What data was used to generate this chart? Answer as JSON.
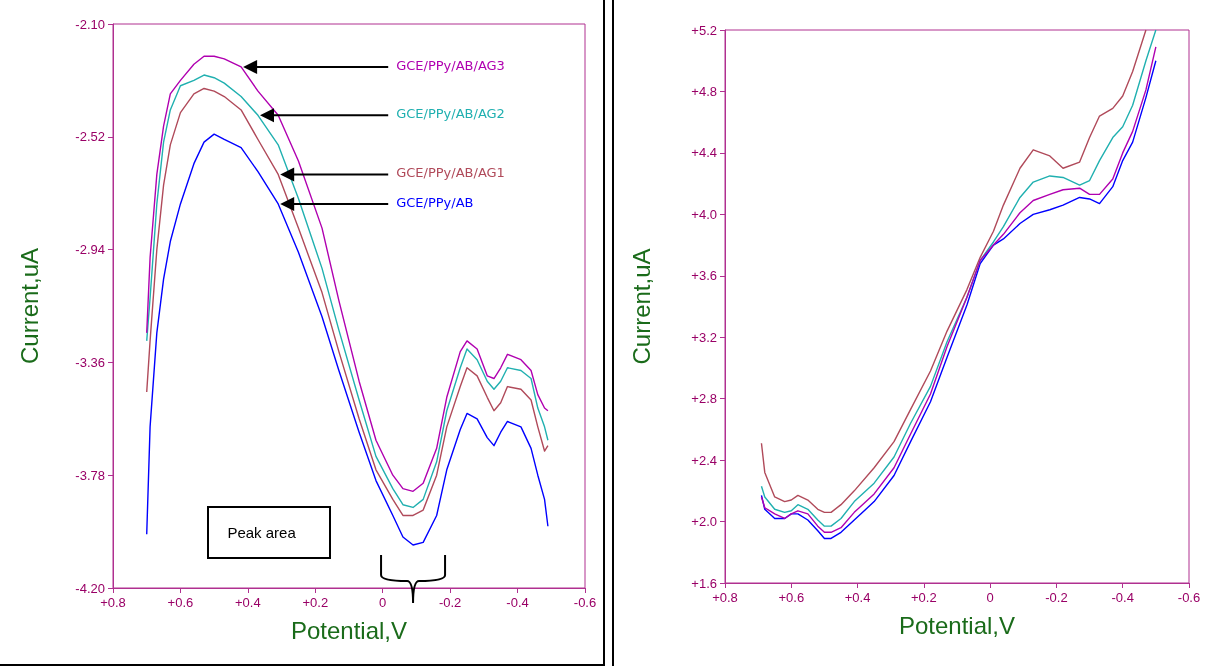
{
  "chart_data": [
    {
      "type": "line",
      "xlabel": "Potential,V",
      "ylabel": "Current,uA",
      "legend": false,
      "marker": "none",
      "line_style": "solid",
      "x": [
        0.7,
        0.69,
        0.67,
        0.65,
        0.63,
        0.6,
        0.56,
        0.53,
        0.5,
        0.47,
        0.42,
        0.37,
        0.31,
        0.25,
        0.18,
        0.13,
        0.07,
        0.02,
        -0.03,
        -0.06,
        -0.09,
        -0.12,
        -0.16,
        -0.19,
        -0.23,
        -0.25,
        -0.28,
        -0.31,
        -0.33,
        -0.35,
        -0.37,
        -0.41,
        -0.44,
        -0.46,
        -0.48,
        -0.49
      ],
      "xlim": [
        0.8,
        -0.6
      ],
      "xticks": [
        {
          "value": 0.8,
          "label": "+0.8"
        },
        {
          "value": 0.6,
          "label": "+0.6"
        },
        {
          "value": 0.4,
          "label": "+0.4"
        },
        {
          "value": 0.2,
          "label": "+0.2"
        },
        0,
        {
          "value": -0.2,
          "label": "-0.2"
        },
        {
          "value": -0.4,
          "label": "-0.4"
        },
        {
          "value": -0.6,
          "label": "-0.6"
        }
      ],
      "ylim": [
        -4.2,
        -2.1
      ],
      "yticks": [
        {
          "value": -4.2,
          "label": "-4.20"
        },
        {
          "value": -3.78,
          "label": "-3.78"
        },
        {
          "value": -3.36,
          "label": "-3.36"
        },
        {
          "value": -2.94,
          "label": "-2.94"
        },
        {
          "value": -2.52,
          "label": "-2.52"
        },
        {
          "value": -2.1,
          "label": "-2.10"
        }
      ],
      "annotations": [
        "Peak area"
      ],
      "series": [
        {
          "name": "GCE/PPy/AB",
          "color": "#0000ff",
          "values": [
            -4.0,
            -3.6,
            -3.25,
            -3.05,
            -2.91,
            -2.77,
            -2.62,
            -2.54,
            -2.51,
            -2.53,
            -2.56,
            -2.65,
            -2.77,
            -2.95,
            -3.19,
            -3.39,
            -3.62,
            -3.8,
            -3.93,
            -4.01,
            -4.04,
            -4.03,
            -3.93,
            -3.76,
            -3.61,
            -3.55,
            -3.57,
            -3.64,
            -3.67,
            -3.62,
            -3.58,
            -3.6,
            -3.68,
            -3.78,
            -3.87,
            -3.97
          ]
        },
        {
          "name": "GCE/PPy/AB/AG1",
          "color": "#b04a5a",
          "values": [
            -3.47,
            -3.28,
            -2.94,
            -2.7,
            -2.55,
            -2.43,
            -2.36,
            -2.34,
            -2.35,
            -2.37,
            -2.42,
            -2.53,
            -2.66,
            -2.86,
            -3.1,
            -3.32,
            -3.57,
            -3.76,
            -3.87,
            -3.93,
            -3.93,
            -3.91,
            -3.78,
            -3.6,
            -3.45,
            -3.38,
            -3.41,
            -3.49,
            -3.54,
            -3.51,
            -3.45,
            -3.46,
            -3.5,
            -3.6,
            -3.69,
            -3.67
          ]
        },
        {
          "name": "GCE/PPy/AB/AG2",
          "color": "#20b0b0",
          "values": [
            -3.28,
            -3.12,
            -2.77,
            -2.54,
            -2.42,
            -2.33,
            -2.31,
            -2.29,
            -2.3,
            -2.32,
            -2.37,
            -2.44,
            -2.55,
            -2.75,
            -3.01,
            -3.24,
            -3.5,
            -3.71,
            -3.83,
            -3.89,
            -3.9,
            -3.87,
            -3.73,
            -3.54,
            -3.38,
            -3.31,
            -3.35,
            -3.43,
            -3.46,
            -3.43,
            -3.38,
            -3.39,
            -3.42,
            -3.53,
            -3.6,
            -3.65
          ]
        },
        {
          "name": "GCE/PPy/AB/AG3",
          "color": "#b000b0",
          "values": [
            -3.25,
            -2.97,
            -2.66,
            -2.48,
            -2.36,
            -2.31,
            -2.25,
            -2.22,
            -2.22,
            -2.23,
            -2.26,
            -2.35,
            -2.44,
            -2.61,
            -2.86,
            -3.13,
            -3.43,
            -3.65,
            -3.78,
            -3.83,
            -3.84,
            -3.81,
            -3.68,
            -3.49,
            -3.32,
            -3.28,
            -3.31,
            -3.41,
            -3.42,
            -3.38,
            -3.33,
            -3.35,
            -3.39,
            -3.48,
            -3.53,
            -3.54
          ]
        }
      ]
    },
    {
      "type": "line",
      "xlabel": "Potential,V",
      "ylabel": "Current,uA",
      "legend": false,
      "marker": "none",
      "line_style": "solid",
      "x": [
        0.69,
        0.68,
        0.65,
        0.62,
        0.6,
        0.58,
        0.55,
        0.52,
        0.5,
        0.48,
        0.45,
        0.41,
        0.35,
        0.29,
        0.24,
        0.18,
        0.13,
        0.07,
        0.03,
        -0.01,
        -0.04,
        -0.09,
        -0.13,
        -0.18,
        -0.22,
        -0.27,
        -0.3,
        -0.33,
        -0.37,
        -0.4,
        -0.43,
        -0.47,
        -0.5
      ],
      "xlim": [
        0.8,
        -0.6
      ],
      "xticks": [
        {
          "value": 0.8,
          "label": "+0.8"
        },
        {
          "value": 0.6,
          "label": "+0.6"
        },
        {
          "value": 0.4,
          "label": "+0.4"
        },
        {
          "value": 0.2,
          "label": "+0.2"
        },
        0,
        {
          "value": -0.2,
          "label": "-0.2"
        },
        {
          "value": -0.4,
          "label": "-0.4"
        },
        {
          "value": -0.6,
          "label": "-0.6"
        }
      ],
      "ylim": [
        1.6,
        5.2
      ],
      "yticks": [
        {
          "value": 1.6,
          "label": "+1.6"
        },
        {
          "value": 2.0,
          "label": "+2.0"
        },
        {
          "value": 2.4,
          "label": "+2.4"
        },
        {
          "value": 2.8,
          "label": "+2.8"
        },
        {
          "value": 3.2,
          "label": "+3.2"
        },
        {
          "value": 3.6,
          "label": "+3.6"
        },
        {
          "value": 4.0,
          "label": "+4.0"
        },
        {
          "value": 4.4,
          "label": "+4.4"
        },
        {
          "value": 4.8,
          "label": "+4.8"
        },
        {
          "value": 5.2,
          "label": "+5.2"
        }
      ],
      "series": [
        {
          "color": "#0000ff",
          "values": [
            2.17,
            2.08,
            2.02,
            2.02,
            2.05,
            2.05,
            2.01,
            1.94,
            1.89,
            1.89,
            1.93,
            2.01,
            2.13,
            2.3,
            2.52,
            2.78,
            3.07,
            3.41,
            3.68,
            3.8,
            3.84,
            3.94,
            4.0,
            4.03,
            4.06,
            4.11,
            4.1,
            4.07,
            4.18,
            4.35,
            4.47,
            4.76,
            5.0
          ]
        },
        {
          "color": "#b04a5a",
          "values": [
            2.51,
            2.32,
            2.16,
            2.13,
            2.14,
            2.17,
            2.14,
            2.08,
            2.06,
            2.06,
            2.11,
            2.2,
            2.35,
            2.52,
            2.73,
            2.98,
            3.24,
            3.51,
            3.72,
            3.89,
            4.06,
            4.3,
            4.42,
            4.38,
            4.3,
            4.34,
            4.5,
            4.64,
            4.69,
            4.77,
            4.93,
            5.2,
            null
          ]
        },
        {
          "color": "#20b0b0",
          "values": [
            2.23,
            2.16,
            2.08,
            2.06,
            2.07,
            2.11,
            2.08,
            2.01,
            1.97,
            1.97,
            2.02,
            2.13,
            2.25,
            2.42,
            2.64,
            2.88,
            3.17,
            3.46,
            3.7,
            3.82,
            3.92,
            4.11,
            4.21,
            4.25,
            4.24,
            4.19,
            4.22,
            4.35,
            4.5,
            4.57,
            4.71,
            5.0,
            5.2
          ]
        },
        {
          "color": "#b000b0",
          "values": [
            2.16,
            2.09,
            2.05,
            2.02,
            2.05,
            2.07,
            2.05,
            1.97,
            1.93,
            1.93,
            1.96,
            2.06,
            2.18,
            2.35,
            2.57,
            2.83,
            3.14,
            3.46,
            3.7,
            3.8,
            3.87,
            4.01,
            4.09,
            4.13,
            4.16,
            4.17,
            4.13,
            4.13,
            4.23,
            4.4,
            4.54,
            4.81,
            5.09
          ]
        }
      ]
    }
  ]
}
